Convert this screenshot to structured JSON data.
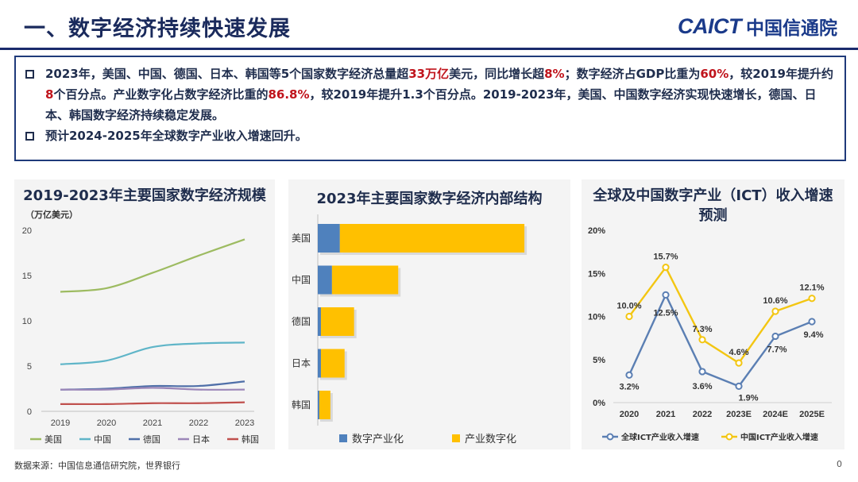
{
  "header": {
    "title": "一、数字经济持续快速发展",
    "logo_mark": "CAICT",
    "logo_text": "中国信通院"
  },
  "summary": {
    "bullet1": [
      {
        "t": "2023年，美国、中国、德国、日本、韩国等5个国家数字经济总量超"
      },
      {
        "t": "33万亿",
        "hl": true
      },
      {
        "t": "美元，同比增长超"
      },
      {
        "t": "8%",
        "hl": true
      },
      {
        "t": "；数字经济占GDP比重为"
      },
      {
        "t": "60%",
        "hl": true
      },
      {
        "t": "，较2019年提升约"
      },
      {
        "t": "8",
        "hl": true
      },
      {
        "t": "个百分点。产业数字化占数字经济比重的"
      },
      {
        "t": "86.8%",
        "hl": true
      },
      {
        "t": "，较2019年提升1.3个百分点。2019-2023年，美国、中国数字经济实现快速增长，德国、日本、韩国数字经济持续稳定发展。"
      }
    ],
    "bullet2": "预计2024-2025年全球数字产业收入增速回升。"
  },
  "chart_data": [
    {
      "type": "line",
      "title": "2019-2023年主要国家数字经济规模",
      "ylabel": "（万亿美元）",
      "x": [
        "2019",
        "2020",
        "2021",
        "2022",
        "2023"
      ],
      "ylim": [
        0,
        20
      ],
      "yticks": [
        "0",
        "5",
        "10",
        "15",
        "20"
      ],
      "series": [
        {
          "name": "美国",
          "color": "#9dbb61",
          "values": [
            13.2,
            13.6,
            15.3,
            17.2,
            19.0
          ]
        },
        {
          "name": "中国",
          "color": "#5fb5c8",
          "values": [
            5.2,
            5.6,
            7.1,
            7.5,
            7.6
          ]
        },
        {
          "name": "德国",
          "color": "#4f6fa8",
          "values": [
            2.4,
            2.5,
            2.8,
            2.8,
            3.3
          ]
        },
        {
          "name": "日本",
          "color": "#9b86b8",
          "values": [
            2.4,
            2.4,
            2.6,
            2.4,
            2.4
          ]
        },
        {
          "name": "韩国",
          "color": "#c0504d",
          "values": [
            0.8,
            0.8,
            0.9,
            0.9,
            1.0
          ]
        }
      ],
      "legend": "bottom"
    },
    {
      "type": "bar",
      "orientation": "horizontal",
      "stacked": true,
      "title": "2023年主要国家数字经济内部结构",
      "categories": [
        "美国",
        "中国",
        "德国",
        "日本",
        "韩国"
      ],
      "series": [
        {
          "name": "数字产业化",
          "color": "#4f81bd",
          "values": [
            1.4,
            0.9,
            0.2,
            0.2,
            0.1
          ]
        },
        {
          "name": "产业数字化",
          "color": "#ffc000",
          "values": [
            11.7,
            4.2,
            2.1,
            1.5,
            0.7
          ]
        }
      ],
      "xlim": [
        0,
        13.5
      ],
      "legend": "bottom"
    },
    {
      "type": "line",
      "title": "全球及中国数字产业（ICT）收入增速预测",
      "x": [
        "2020",
        "2021",
        "2022",
        "2023E",
        "2024E",
        "2025E"
      ],
      "ylim": [
        0,
        20
      ],
      "yticks": [
        "0%",
        "5%",
        "10%",
        "15%",
        "20%"
      ],
      "series": [
        {
          "name": "全球ICT产业收入增速",
          "color": "#5b7fb3",
          "values": [
            3.2,
            12.5,
            3.6,
            1.9,
            7.7,
            9.4
          ],
          "labels": [
            "3.2%",
            "12.5%",
            "3.6%",
            "1.9%",
            "7.7%",
            "9.4%"
          ]
        },
        {
          "name": "中国ICT产业收入增速",
          "color": "#f3c612",
          "values": [
            10.0,
            15.7,
            7.3,
            4.6,
            10.6,
            12.1
          ],
          "labels": [
            "10.0%",
            "15.7%",
            "7.3%",
            "4.6%",
            "10.6%",
            "12.1%"
          ]
        }
      ],
      "legend": "bottom"
    }
  ],
  "footer": {
    "source": "数据来源：中国信息通信研究院，世界银行",
    "page": "0"
  }
}
